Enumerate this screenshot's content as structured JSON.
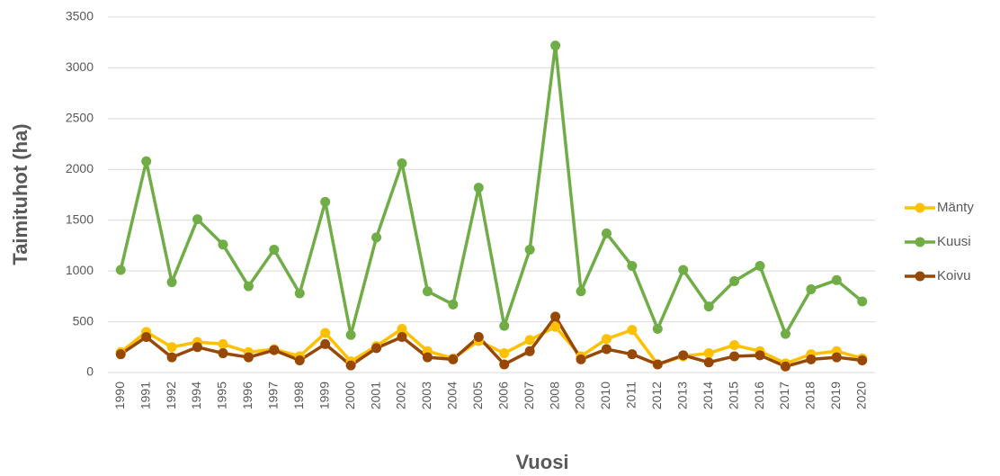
{
  "chart_data": {
    "type": "line",
    "x_label": "Vuosi",
    "y_label": "Taimituhot (ha)",
    "categories": [
      "1990",
      "1991",
      "1992",
      "1994",
      "1995",
      "1996",
      "1997",
      "1998",
      "1999",
      "2000",
      "2001",
      "2002",
      "2003",
      "2004",
      "2005",
      "2006",
      "2007",
      "2008",
      "2009",
      "2010",
      "2011",
      "2012",
      "2013",
      "2014",
      "2015",
      "2016",
      "2017",
      "2018",
      "2019",
      "2020"
    ],
    "series": [
      {
        "name": "Mänty",
        "color": "#ffc000",
        "values": [
          200,
          400,
          250,
          300,
          280,
          200,
          230,
          160,
          390,
          110,
          260,
          430,
          210,
          140,
          310,
          190,
          320,
          450,
          160,
          330,
          420,
          80,
          160,
          190,
          270,
          210,
          90,
          180,
          210,
          140
        ]
      },
      {
        "name": "Kuusi",
        "color": "#70ad47",
        "values": [
          1010,
          2080,
          890,
          1510,
          1260,
          850,
          1210,
          780,
          1680,
          370,
          1330,
          2060,
          800,
          670,
          1820,
          460,
          1210,
          3220,
          800,
          1370,
          1050,
          430,
          1010,
          650,
          900,
          1050,
          380,
          820,
          910,
          700
        ]
      },
      {
        "name": "Koivu",
        "color": "#974706",
        "values": [
          180,
          350,
          150,
          250,
          190,
          150,
          220,
          120,
          280,
          70,
          240,
          350,
          150,
          130,
          350,
          80,
          210,
          550,
          130,
          230,
          180,
          80,
          170,
          100,
          160,
          170,
          60,
          130,
          150,
          120
        ]
      }
    ],
    "ylim": [
      0,
      3500
    ],
    "yticks": [
      0,
      500,
      1000,
      1500,
      2000,
      2500,
      3000,
      3500
    ],
    "grid": true,
    "legend": "right"
  }
}
